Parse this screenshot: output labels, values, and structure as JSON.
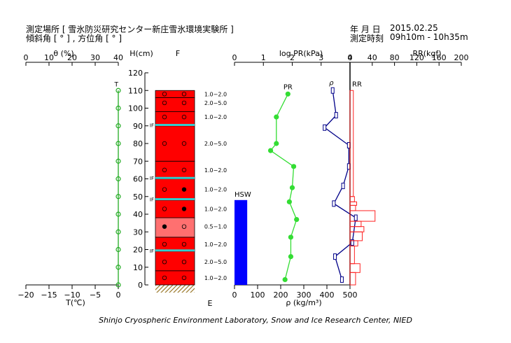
{
  "header": {
    "site_label": "測定場所 [ 雪氷防災研究センター新庄雪氷環境実験所 ]",
    "angle_label": "傾斜角 [ ° ] , 方位角 [ ° ]",
    "date_label": "年 月 日",
    "date_value": "2015.02.25",
    "time_label": "測定時刻",
    "time_value": "09h10m - 10h35m"
  },
  "caption": "Shinjo Cryospheric Environment Laboratory, Snow and Ice Research Center, NIED",
  "chart_data": [
    {
      "type": "line",
      "panel": "water-content-temperature",
      "top_axis": {
        "label": "θ (%)",
        "range": [
          0,
          40
        ],
        "ticks": [
          0,
          10,
          20,
          30,
          40
        ]
      },
      "bottom_axis": {
        "label": "T(℃)",
        "range": [
          -20,
          0
        ],
        "ticks": [
          -20,
          -15,
          -10,
          -5,
          0
        ],
        "tick_labels": [
          "−20",
          "−15",
          "−10",
          "−5",
          "0"
        ]
      },
      "series": [
        {
          "name": "T",
          "color": "#22aa22",
          "points": [
            [
              0,
              0
            ],
            [
              0,
              10
            ],
            [
              0,
              20
            ],
            [
              0,
              30
            ],
            [
              0,
              40
            ],
            [
              0,
              50
            ],
            [
              0,
              60
            ],
            [
              0,
              70
            ],
            [
              0,
              80
            ],
            [
              0,
              90
            ],
            [
              0,
              100
            ],
            [
              0,
              110
            ]
          ]
        }
      ]
    },
    {
      "type": "table",
      "panel": "snow-profile",
      "height_axis": {
        "label": "H(cm)",
        "range": [
          0,
          120
        ],
        "ticks": [
          0,
          10,
          20,
          30,
          40,
          50,
          60,
          70,
          80,
          90,
          100,
          110,
          120
        ]
      },
      "top_label": "F",
      "bottom_label": "E",
      "colors": {
        "layer": "#ff0000",
        "wet_layer": "#ff7070",
        "ice_film": "#33cccc",
        "ground": "#9c7a2c"
      },
      "ice_films": [
        {
          "h": 90.5,
          "label": "IF"
        },
        {
          "h": 60.5,
          "label": "IF"
        },
        {
          "h": 48.5,
          "label": "IF"
        },
        {
          "h": 19.5,
          "label": "IF"
        }
      ],
      "layers": [
        {
          "bottom": 0,
          "top": 8,
          "style": "solid"
        },
        {
          "bottom": 8,
          "top": 19,
          "style": "solid"
        },
        {
          "bottom": 19,
          "top": 27,
          "style": "solid"
        },
        {
          "bottom": 27,
          "top": 38,
          "style": "light"
        },
        {
          "bottom": 38,
          "top": 48,
          "style": "solid"
        },
        {
          "bottom": 48,
          "top": 60,
          "style": "solid"
        },
        {
          "bottom": 60,
          "top": 70,
          "style": "solid"
        },
        {
          "bottom": 70,
          "top": 90,
          "style": "solid"
        },
        {
          "bottom": 90,
          "top": 98,
          "style": "solid"
        },
        {
          "bottom": 98,
          "top": 106,
          "style": "solid"
        },
        {
          "bottom": 106,
          "top": 110,
          "style": "solid"
        }
      ],
      "grain_marks": [
        {
          "h": 108,
          "left": "open",
          "right": "open"
        },
        {
          "h": 103,
          "left": "open",
          "right": "open"
        },
        {
          "h": 95,
          "left": "open",
          "right": "open"
        },
        {
          "h": 80,
          "left": "open",
          "right": "open"
        },
        {
          "h": 65,
          "left": "open",
          "right": "open"
        },
        {
          "h": 54,
          "left": "open",
          "right": "filled"
        },
        {
          "h": 43,
          "left": "open",
          "right": "filled"
        },
        {
          "h": 33,
          "left": "filled",
          "right": "open"
        },
        {
          "h": 23,
          "left": "open",
          "right": "open"
        },
        {
          "h": 13,
          "left": "open",
          "right": "open"
        },
        {
          "h": 4,
          "left": "open",
          "right": "open"
        }
      ],
      "grain_sizes": [
        {
          "h": 108,
          "text": "1.0−2.0"
        },
        {
          "h": 103,
          "text": "2.0−5.0"
        },
        {
          "h": 95,
          "text": "1.0−2.0"
        },
        {
          "h": 80,
          "text": "2.0−5.0"
        },
        {
          "h": 65,
          "text": "1.0−2.0"
        },
        {
          "h": 54,
          "text": "1.0−2.0"
        },
        {
          "h": 43,
          "text": "1.0−2.0"
        },
        {
          "h": 33,
          "text": "0.5−1.0"
        },
        {
          "h": 23,
          "text": "1.0−2.0"
        },
        {
          "h": 13,
          "text": "2.0−5.0"
        },
        {
          "h": 4,
          "text": "1.0−2.0"
        }
      ]
    },
    {
      "type": "line",
      "panel": "pr-density",
      "top_axis": {
        "label": "log PR(kPa)",
        "range": [
          0,
          4
        ],
        "ticks": [
          0,
          1,
          2,
          3,
          4
        ]
      },
      "bottom_axis": {
        "label": "ρ (kg/m³)",
        "range": [
          0,
          500
        ],
        "ticks": [
          0,
          100,
          200,
          300,
          400,
          500
        ]
      },
      "hsw": {
        "label": "HSW",
        "value": 48,
        "bar_width": 55,
        "color": "#0000ff"
      },
      "series": [
        {
          "name": "PR",
          "axis": "top",
          "color": "#33dd33",
          "points": [
            [
              1.85,
              108
            ],
            [
              1.45,
              95
            ],
            [
              1.45,
              80
            ],
            [
              1.25,
              76
            ],
            [
              2.05,
              67
            ],
            [
              2.0,
              55
            ],
            [
              1.9,
              47
            ],
            [
              2.15,
              37
            ],
            [
              1.95,
              27
            ],
            [
              1.95,
              16
            ],
            [
              1.75,
              3
            ]
          ]
        },
        {
          "name": "ρ",
          "axis": "bottom",
          "color": "#000088",
          "points": [
            [
              425,
              110
            ],
            [
              440,
              96
            ],
            [
              390,
              89
            ],
            [
              495,
              79
            ],
            [
              495,
              67
            ],
            [
              470,
              56
            ],
            [
              430,
              46
            ],
            [
              525,
              38
            ],
            [
              510,
              24
            ],
            [
              435,
              16
            ],
            [
              465,
              3
            ]
          ]
        }
      ]
    },
    {
      "type": "bar",
      "panel": "ram-resistance",
      "series_label": "RR",
      "top_axis": {
        "label": "RR(kgf)",
        "range": [
          0,
          200
        ],
        "ticks": [
          0,
          40,
          80,
          120,
          160,
          200
        ]
      },
      "color": "#ff2222",
      "bars": [
        {
          "bottom": 0,
          "top": 7,
          "value": 10
        },
        {
          "bottom": 7,
          "top": 12,
          "value": 18
        },
        {
          "bottom": 12,
          "top": 22,
          "value": 8
        },
        {
          "bottom": 22,
          "top": 25,
          "value": 14
        },
        {
          "bottom": 25,
          "top": 30,
          "value": 22
        },
        {
          "bottom": 30,
          "top": 33,
          "value": 25
        },
        {
          "bottom": 33,
          "top": 36,
          "value": 20
        },
        {
          "bottom": 36,
          "top": 42,
          "value": 45
        },
        {
          "bottom": 42,
          "top": 45,
          "value": 10
        },
        {
          "bottom": 45,
          "top": 47,
          "value": 12
        },
        {
          "bottom": 47,
          "top": 50,
          "value": 8
        },
        {
          "bottom": 50,
          "top": 110,
          "value": 6
        }
      ]
    }
  ]
}
